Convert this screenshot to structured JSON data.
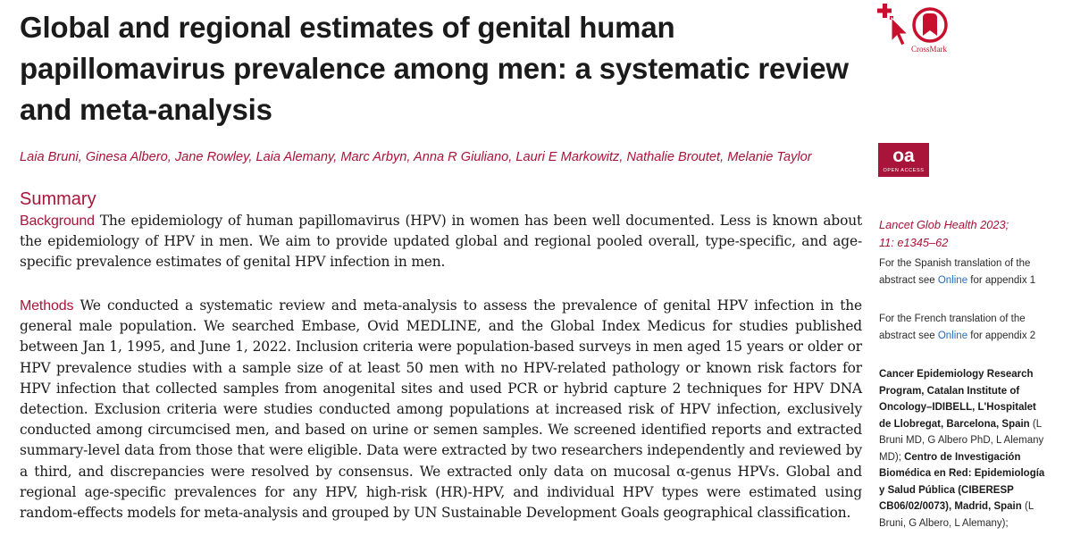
{
  "article": {
    "title": "Global and regional estimates of genital human papillomavirus prevalence among men: a systematic review and meta-analysis",
    "authors": "Laia Bruni, Ginesa Albero, Jane Rowley, Laia Alemany, Marc Arbyn, Anna R Giuliano, Lauri E Markowitz, Nathalie Broutet, Melanie Taylor"
  },
  "badges": {
    "crossmark_label": "CrossMark",
    "open_access_mark": "oa",
    "open_access_text": "OPEN ACCESS",
    "crossmark_color": "#c8102e",
    "oa_color": "#a8143a"
  },
  "summary": {
    "heading": "Summary",
    "background_label": "Background",
    "background_text": " The epidemiology of human papillomavirus (HPV) in women has been well documented. Less is known about the epidemiology of HPV in men. We aim to provide updated global and regional pooled overall, type-specific, and age-specific prevalence estimates of genital HPV infection in men.",
    "methods_label": "Methods",
    "methods_text": " We conducted a systematic review and meta-analysis to assess the prevalence of genital HPV infection in the general male population. We searched Embase, Ovid MEDLINE, and the Global Index Medicus for studies published between Jan 1, 1995, and June 1, 2022. Inclusion criteria were population-based surveys in men aged 15 years or older or HPV prevalence studies with a sample size of at least 50 men with no HPV-related pathology or known risk factors for HPV infection that collected samples from anogenital sites and used PCR or hybrid capture 2 techniques for HPV DNA detection. Exclusion criteria were studies conducted among populations at increased risk of HPV infection, exclusively conducted among circumcised men, and based on urine or semen samples. We screened identified reports and extracted summary-level data from those that were eligible. Data were extracted by two researchers independently and reviewed by a third, and discrepancies were resolved by consensus. We extracted only data on mucosal α-genus HPVs. Global and regional age-specific prevalences for any HPV, high-risk (HR)-HPV, and individual HPV types were estimated using random-effects models for meta-analysis and grouped by UN Sustainable Development Goals geographical classification."
  },
  "sidebar": {
    "citation_line1": "Lancet Glob Health 2023;",
    "citation_line2": "11: e1345–62",
    "note1_pre": "For the Spanish translation of the abstract see ",
    "note1_link": "Online",
    "note1_post": " for appendix 1",
    "note2_pre": "For the French translation of the abstract see ",
    "note2_link": "Online",
    "note2_post": " for appendix 2",
    "affil1_bold": "Cancer Epidemiology Research Program, Catalan Institute of Oncology–IDIBELL, L'Hospitalet de Llobregat, Barcelona, Spain",
    "affil1_names": " (L Bruni MD, G Albero PhD, L Alemany MD); ",
    "affil2_bold": "Centro de Investigación Biomédica en Red: Epidemiología y Salud Pública (CIBERESP CB06/02/0073), Madrid, Spain",
    "affil2_names": " (L Bruni, G Albero, L Alemany);"
  }
}
